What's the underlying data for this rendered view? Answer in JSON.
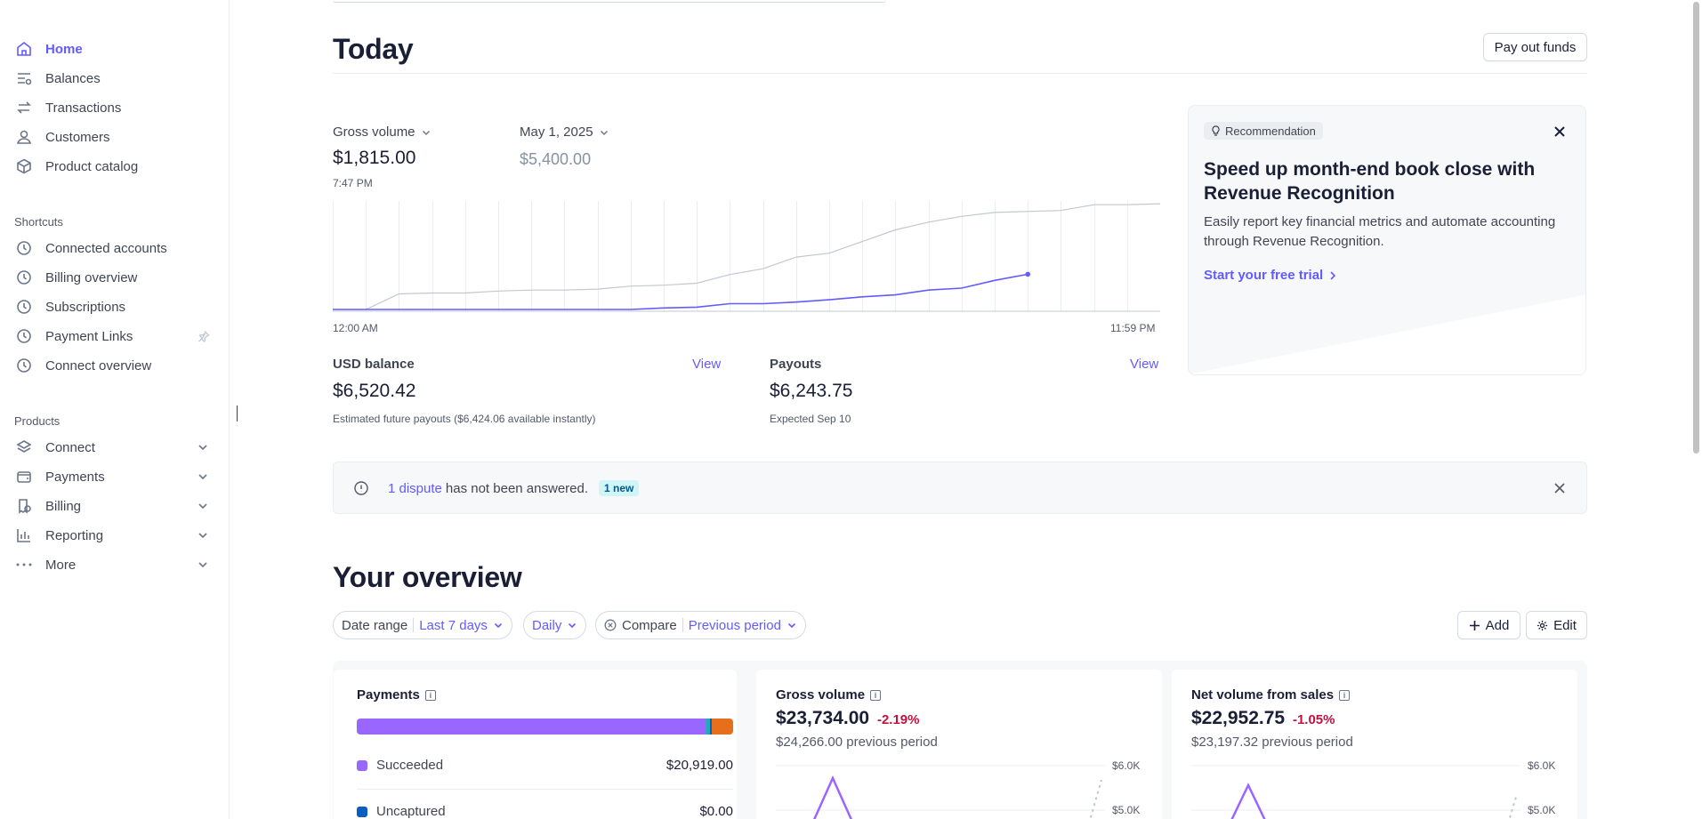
{
  "sidebar": {
    "nav": [
      {
        "label": "Home",
        "icon": "home-icon",
        "active": true
      },
      {
        "label": "Balances",
        "icon": "balances-icon"
      },
      {
        "label": "Transactions",
        "icon": "transactions-icon"
      },
      {
        "label": "Customers",
        "icon": "customers-icon"
      },
      {
        "label": "Product catalog",
        "icon": "product-catalog-icon"
      }
    ],
    "shortcuts_label": "Shortcuts",
    "shortcuts": [
      {
        "label": "Connected accounts",
        "icon": "clock-icon"
      },
      {
        "label": "Billing overview",
        "icon": "clock-icon"
      },
      {
        "label": "Subscriptions",
        "icon": "clock-icon"
      },
      {
        "label": "Payment Links",
        "icon": "clock-icon"
      },
      {
        "label": "Connect overview",
        "icon": "clock-icon"
      }
    ],
    "products_label": "Products",
    "products": [
      {
        "label": "Connect",
        "icon": "connect-icon"
      },
      {
        "label": "Payments",
        "icon": "payments-icon"
      },
      {
        "label": "Billing",
        "icon": "billing-icon"
      },
      {
        "label": "Reporting",
        "icon": "reporting-icon"
      },
      {
        "label": "More",
        "icon": "more-icon"
      }
    ]
  },
  "today": {
    "title": "Today",
    "payout_button": "Pay out funds",
    "gross_volume_label": "Gross volume",
    "gross_volume_value": "$1,815.00",
    "gross_volume_time": "7:47 PM",
    "compare_label": "May 1, 2025",
    "compare_value": "$5,400.00",
    "x_start": "12:00 AM",
    "x_end": "11:59 PM",
    "usd_balance_label": "USD balance",
    "usd_balance_view": "View",
    "usd_balance_value": "$6,520.42",
    "usd_balance_note": "Estimated future payouts ($6,424.06 available instantly)",
    "payouts_label": "Payouts",
    "payouts_view": "View",
    "payouts_value": "$6,243.75",
    "payouts_note": "Expected Sep 10"
  },
  "chart_data": [
    {
      "type": "line",
      "title": "",
      "x_labels": [
        "12:00 AM",
        "11:59 PM"
      ],
      "series": [
        {
          "name": "Gross volume",
          "color": "#635bff",
          "values": [
            0,
            0,
            0,
            0,
            0,
            0,
            0,
            0,
            0,
            0,
            80,
            120,
            300,
            300,
            380,
            500,
            650,
            750,
            1000,
            1100,
            1500,
            1815
          ]
        },
        {
          "name": "May 1, 2025",
          "color": "#c0c8d2",
          "values": [
            0,
            0,
            800,
            850,
            850,
            950,
            1000,
            1000,
            1050,
            1200,
            1250,
            1350,
            1800,
            2100,
            2700,
            2900,
            3500,
            4100,
            4500,
            4800,
            5000,
            5050,
            5100,
            5400,
            5400,
            5450
          ]
        }
      ]
    },
    {
      "type": "line",
      "title": "Gross volume",
      "y_ticks": [
        "$6.0K",
        "$5.0K"
      ]
    },
    {
      "type": "line",
      "title": "Net volume from sales",
      "y_ticks": [
        "$6.0K",
        "$5.0K"
      ]
    }
  ],
  "recommendation": {
    "badge": "Recommendation",
    "title": "Speed up month-end book close with Revenue Recognition",
    "body": "Easily report key financial metrics and automate accounting through Revenue Recognition.",
    "cta": "Start your free trial"
  },
  "dispute": {
    "link": "1 dispute",
    "text": "has not been answered.",
    "badge": "1 new"
  },
  "overview": {
    "title": "Your overview",
    "date_range_label": "Date range",
    "date_range_value": "Last 7 days",
    "interval_value": "Daily",
    "compare_label": "Compare",
    "compare_value": "Previous period",
    "add_label": "Add",
    "edit_label": "Edit",
    "payments": {
      "title": "Payments",
      "bar": [
        {
          "name": "Succeeded",
          "color": "#9966ff",
          "fraction": 0.93
        },
        {
          "name": "Teal",
          "color": "#0fb5ae",
          "fraction": 0.008
        },
        {
          "name": "Blue",
          "color": "#0a5ec2",
          "fraction": 0.006
        },
        {
          "name": "Orange",
          "color": "#e56f1b",
          "fraction": 0.056
        }
      ],
      "rows": [
        {
          "label": "Succeeded",
          "amount": "$20,919.00",
          "color": "#9966ff"
        },
        {
          "label": "Uncaptured",
          "amount": "$0.00",
          "color": "#0a5ec2"
        }
      ]
    },
    "gross": {
      "title": "Gross volume",
      "value": "$23,734.00",
      "change": "-2.19%",
      "previous": "$24,266.00 previous period"
    },
    "net": {
      "title": "Net volume from sales",
      "value": "$22,952.75",
      "change": "-1.05%",
      "previous": "$23,197.32 previous period"
    }
  },
  "colors": {
    "accent": "#635bff",
    "negative": "#c0123c"
  }
}
